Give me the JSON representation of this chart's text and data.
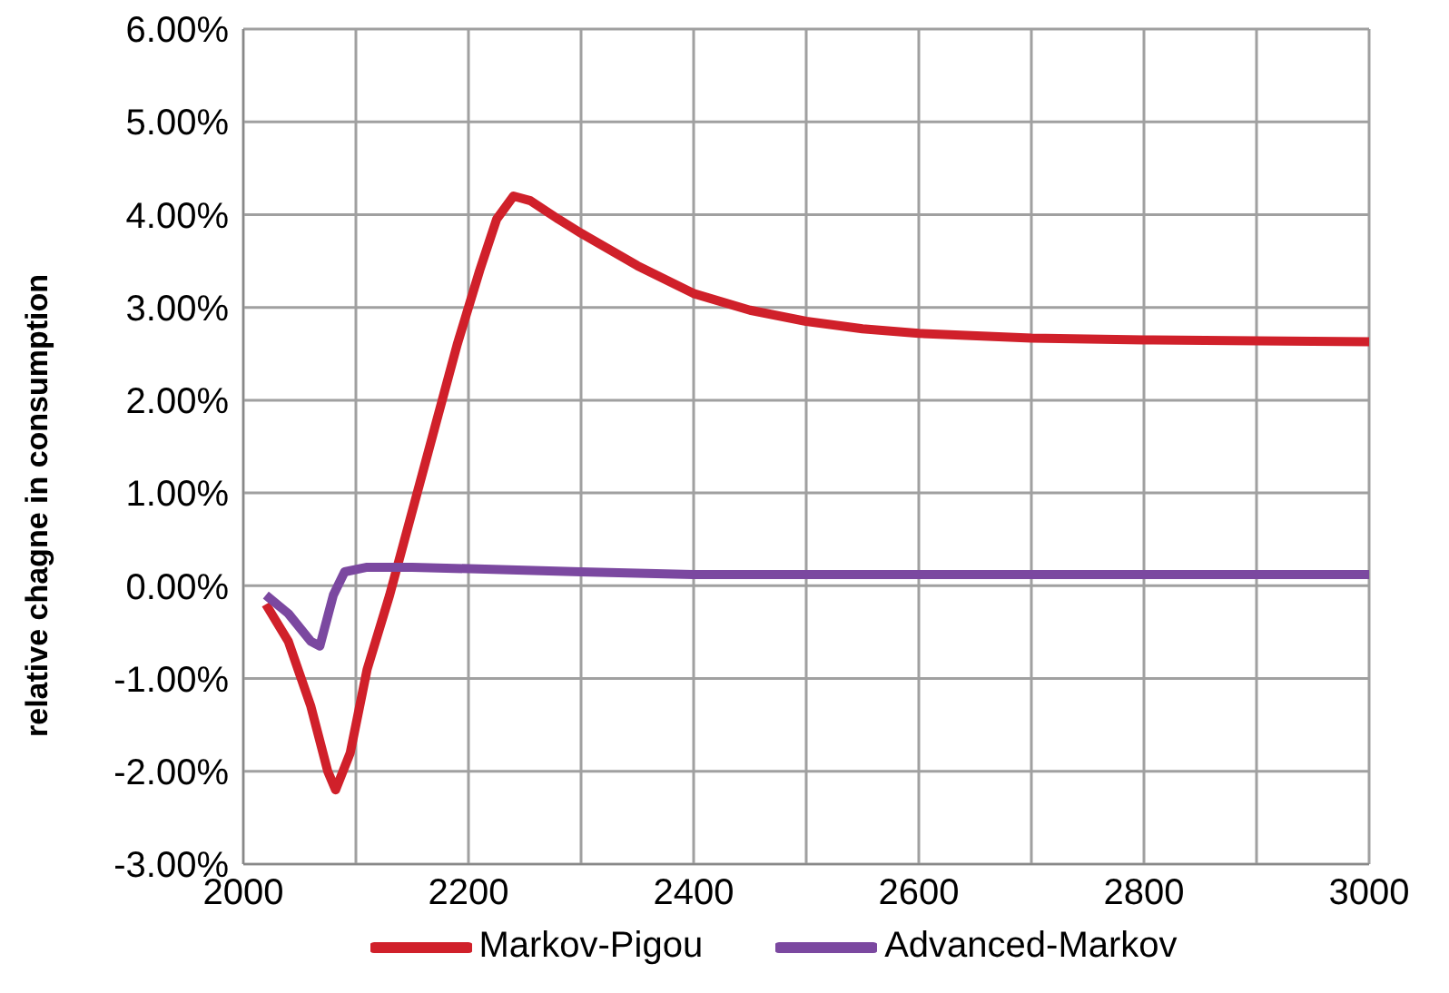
{
  "chart_data": {
    "type": "line",
    "ylabel": "relative chagne in consumption",
    "xlim": [
      2000,
      3000
    ],
    "xticks": [
      2000,
      {
        "value": 2100,
        "label": null
      },
      2200,
      {
        "value": 2300,
        "label": null
      },
      2400,
      {
        "value": 2500,
        "label": null
      },
      2600,
      {
        "value": 2700,
        "label": null
      },
      2800,
      {
        "value": 2900,
        "label": null
      },
      3000
    ],
    "ylim": [
      -3,
      6
    ],
    "yticks": [
      {
        "value": -3,
        "label": "-3.00%"
      },
      {
        "value": -2,
        "label": "-2.00%"
      },
      {
        "value": -1,
        "label": "-1.00%"
      },
      {
        "value": 0,
        "label": "0.00%"
      },
      {
        "value": 1,
        "label": "1.00%"
      },
      {
        "value": 2,
        "label": "2.00%"
      },
      {
        "value": 3,
        "label": "3.00%"
      },
      {
        "value": 4,
        "label": "4.00%"
      },
      {
        "value": 5,
        "label": "5.00%"
      },
      {
        "value": 6,
        "label": "6.00%"
      }
    ],
    "grid": true,
    "legend": "bottom",
    "marker": "none",
    "line_style": "solid",
    "series": [
      {
        "name": "Markov-Pigou",
        "color": "#d0202a",
        "x": [
          2020,
          2040,
          2060,
          2075,
          2082,
          2095,
          2110,
          2130,
          2150,
          2170,
          2190,
          2210,
          2225,
          2240,
          2255,
          2280,
          2300,
          2350,
          2400,
          2450,
          2500,
          2550,
          2600,
          2700,
          2800,
          2900,
          3000
        ],
        "values": [
          -0.2,
          -0.6,
          -1.3,
          -2.0,
          -2.2,
          -1.8,
          -0.9,
          -0.1,
          0.8,
          1.7,
          2.6,
          3.4,
          3.95,
          4.2,
          4.15,
          3.95,
          3.8,
          3.45,
          3.15,
          2.97,
          2.85,
          2.77,
          2.72,
          2.67,
          2.65,
          2.64,
          2.63
        ]
      },
      {
        "name": "Advanced-Markov",
        "color": "#7b48a0",
        "x": [
          2020,
          2040,
          2060,
          2068,
          2080,
          2090,
          2110,
          2150,
          2300,
          2400,
          3000
        ],
        "values": [
          -0.1,
          -0.3,
          -0.6,
          -0.65,
          -0.1,
          0.15,
          0.2,
          0.2,
          0.15,
          0.12,
          0.12
        ]
      }
    ]
  }
}
